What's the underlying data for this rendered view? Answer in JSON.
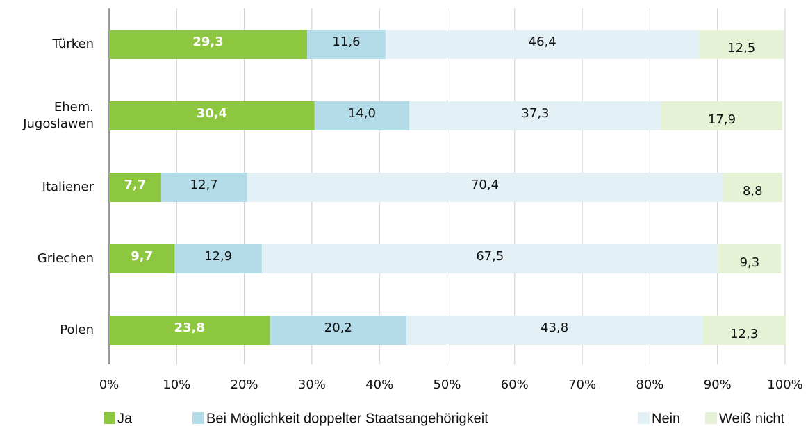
{
  "chart_data": {
    "type": "stacked_barh",
    "categories": [
      "Türken",
      "Ehem. Jugoslawen",
      "Italiener",
      "Griechen",
      "Polen"
    ],
    "series": [
      {
        "name": "Ja",
        "color": "#8dc63f",
        "values": [
          29.3,
          30.4,
          7.7,
          9.7,
          23.8
        ],
        "value_labels": [
          "29,3",
          "30,4",
          "7,7",
          "9,7",
          "23,8"
        ]
      },
      {
        "name": "Bei Möglichkeit doppelter Staatsangehörigkeit",
        "color": "#b3dbe8",
        "values": [
          11.6,
          14.0,
          12.7,
          12.9,
          20.2
        ],
        "value_labels": [
          "11,6",
          "14,0",
          "12,7",
          "12,9",
          "20,2"
        ]
      },
      {
        "name": "Nein",
        "color": "#e3f1f7",
        "values": [
          46.4,
          37.3,
          70.4,
          67.5,
          43.8
        ],
        "value_labels": [
          "46,4",
          "37,3",
          "70,4",
          "67,5",
          "43,8"
        ]
      },
      {
        "name": "Weiß nicht",
        "color": "#e6f2d5",
        "values": [
          12.5,
          17.9,
          8.8,
          9.3,
          12.3
        ],
        "value_labels": [
          "12,5",
          "17,9",
          "8,8",
          "9,3",
          "12,3"
        ]
      }
    ],
    "xlim": [
      0,
      100
    ],
    "xticks": [
      {
        "value": 0,
        "label": "0%"
      },
      {
        "value": 10,
        "label": "10%"
      },
      {
        "value": 20,
        "label": "20%"
      },
      {
        "value": 30,
        "label": "30%"
      },
      {
        "value": 40,
        "label": "40%"
      },
      {
        "value": 50,
        "label": "50%"
      },
      {
        "value": 60,
        "label": "60%"
      },
      {
        "value": 70,
        "label": "70%"
      },
      {
        "value": 80,
        "label": "80%"
      },
      {
        "value": 90,
        "label": "90%"
      },
      {
        "value": 100,
        "label": "100%"
      }
    ],
    "grid": true,
    "legend": "bottom"
  }
}
